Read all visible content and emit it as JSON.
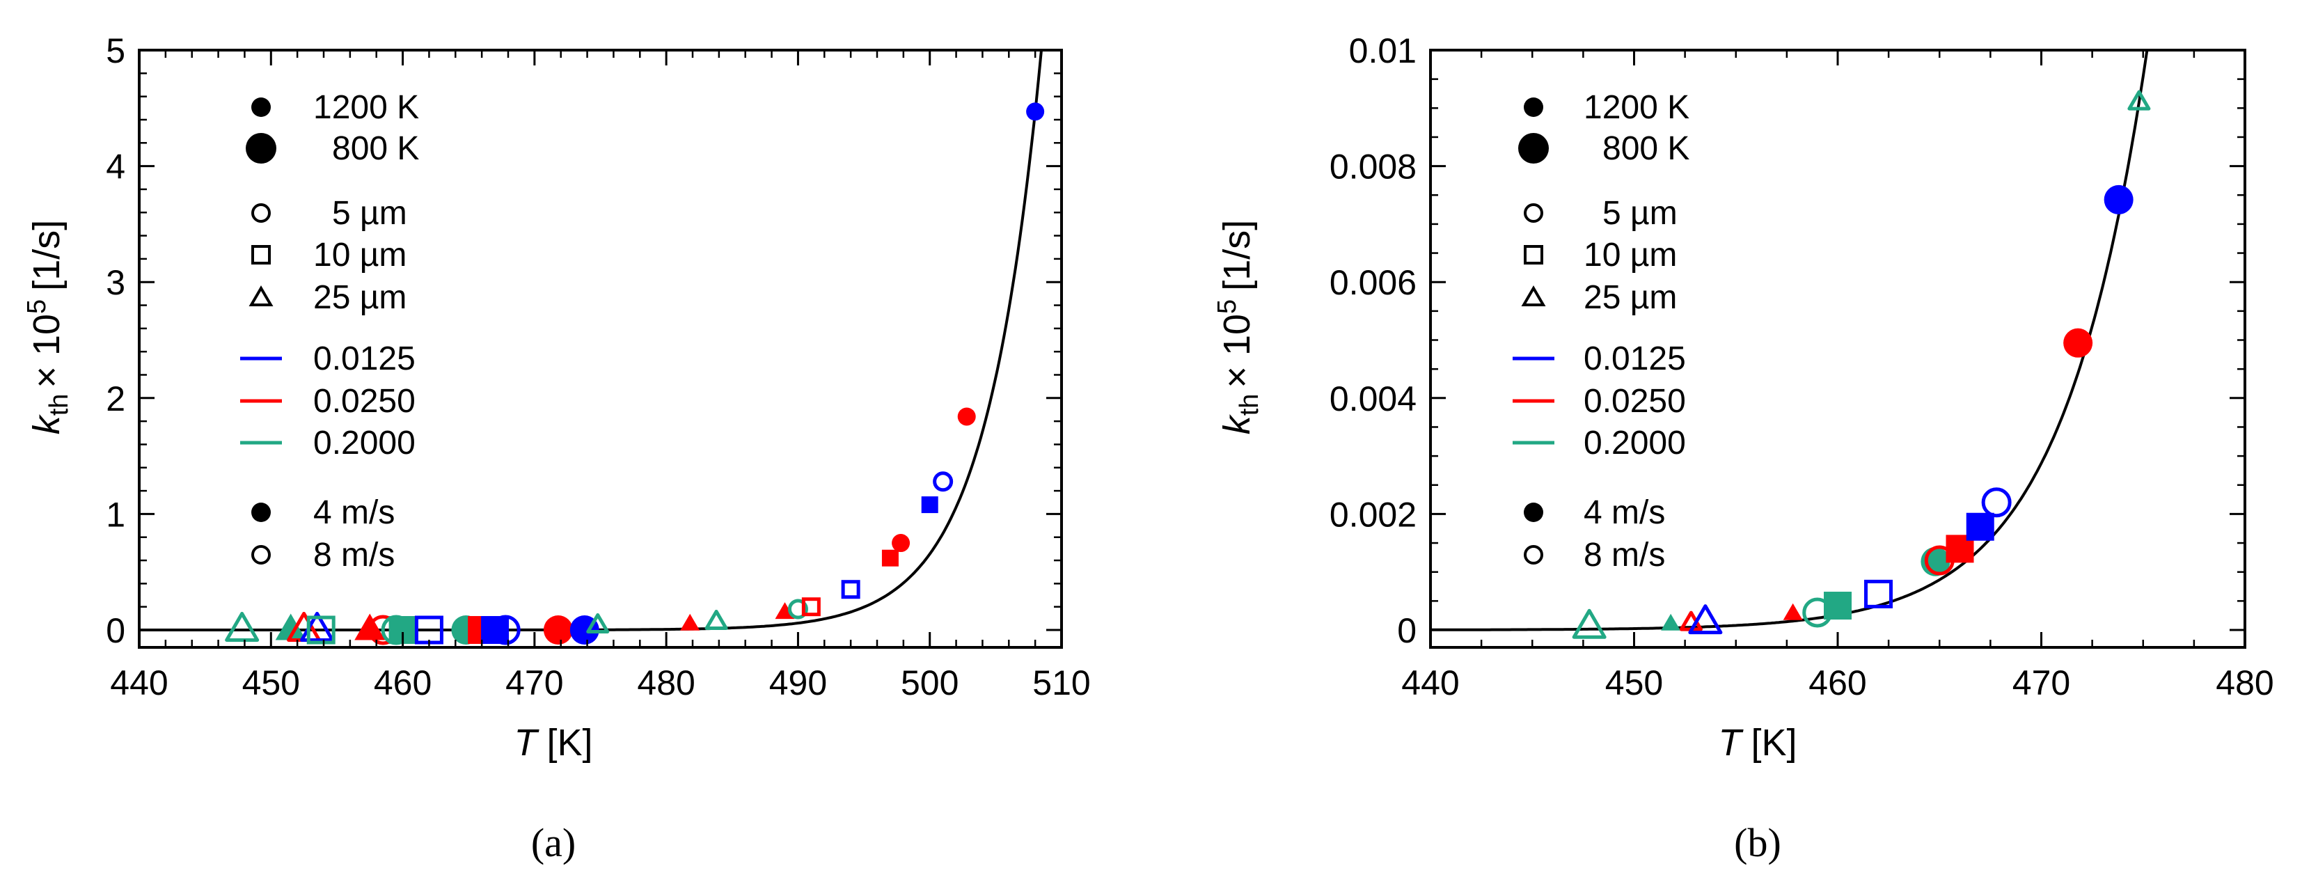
{
  "chart_data": [
    {
      "type": "scatter",
      "panel": "a",
      "caption": "(a)",
      "xlabel": "T",
      "xunit": "[K]",
      "ylabel_main": "k",
      "ylabel_sub": "th",
      "ylabel_mult": "× 10",
      "ylabel_exp": "5",
      "ylabel_unit": "[1/s]",
      "xlim": [
        440,
        510
      ],
      "ylim": [
        -0.15,
        5
      ],
      "xticks": [
        440,
        450,
        460,
        470,
        480,
        490,
        500,
        510
      ],
      "yticks": [
        0,
        1,
        2,
        3,
        4,
        5
      ],
      "xtick_labels": [
        "440",
        "450",
        "460",
        "470",
        "480",
        "490",
        "500",
        "510"
      ],
      "ytick_labels": [
        "0",
        "1",
        "2",
        "3",
        "4",
        "5"
      ],
      "fit_curve": {
        "form": "exponential",
        "a": 4.47,
        "T_ref": 508,
        "b": 0.24,
        "x_start": 440
      },
      "legend": {
        "temperature": [
          {
            "label": "1200 K",
            "size": "small"
          },
          {
            "label": "800 K",
            "size": "large"
          }
        ],
        "diameter": [
          {
            "label": "5 µm",
            "marker": "circle"
          },
          {
            "label": "10 µm",
            "marker": "square"
          },
          {
            "label": "25 µm",
            "marker": "triangle"
          }
        ],
        "ratio": [
          {
            "label": "0.0125",
            "color": "#0000ff"
          },
          {
            "label": "0.0250",
            "color": "#ff0000"
          },
          {
            "label": "0.2000",
            "color": "#22a884"
          }
        ],
        "velocity": [
          {
            "label": "4 m/s",
            "fill": "filled"
          },
          {
            "label": "8 m/s",
            "fill": "open"
          }
        ]
      },
      "points": [
        {
          "x": 447.8,
          "y": 0.0,
          "marker": "triangle",
          "color": "#22a884",
          "fill": "open",
          "size": "large"
        },
        {
          "x": 451.5,
          "y": 0.0,
          "marker": "triangle",
          "color": "#22a884",
          "fill": "filled",
          "size": "large"
        },
        {
          "x": 452.5,
          "y": 0.0,
          "marker": "triangle",
          "color": "#ff0000",
          "fill": "open",
          "size": "large"
        },
        {
          "x": 453.5,
          "y": 0.0,
          "marker": "triangle",
          "color": "#0000ff",
          "fill": "open",
          "size": "large"
        },
        {
          "x": 453.8,
          "y": 0.0,
          "marker": "square",
          "color": "#22a884",
          "fill": "open",
          "size": "large"
        },
        {
          "x": 457.5,
          "y": 0.0,
          "marker": "triangle",
          "color": "#ff0000",
          "fill": "filled",
          "size": "large"
        },
        {
          "x": 458.5,
          "y": 0.0,
          "marker": "circle",
          "color": "#ff0000",
          "fill": "open",
          "size": "large"
        },
        {
          "x": 459.5,
          "y": 0.0,
          "marker": "circle",
          "color": "#22a884",
          "fill": "open",
          "size": "large"
        },
        {
          "x": 460.0,
          "y": 0.0,
          "marker": "square",
          "color": "#22a884",
          "fill": "filled",
          "size": "large"
        },
        {
          "x": 462.0,
          "y": 0.0,
          "marker": "square",
          "color": "#0000ff",
          "fill": "open",
          "size": "large"
        },
        {
          "x": 464.8,
          "y": 0.0,
          "marker": "circle",
          "color": "#22a884",
          "fill": "filled",
          "size": "large"
        },
        {
          "x": 466.0,
          "y": 0.0,
          "marker": "square",
          "color": "#ff0000",
          "fill": "filled",
          "size": "large"
        },
        {
          "x": 467.0,
          "y": 0.0,
          "marker": "square",
          "color": "#0000ff",
          "fill": "filled",
          "size": "large"
        },
        {
          "x": 467.8,
          "y": 0.0,
          "marker": "circle",
          "color": "#0000ff",
          "fill": "open",
          "size": "large"
        },
        {
          "x": 471.8,
          "y": 0.0,
          "marker": "circle",
          "color": "#ff0000",
          "fill": "filled",
          "size": "large"
        },
        {
          "x": 473.8,
          "y": 0.0,
          "marker": "circle",
          "color": "#0000ff",
          "fill": "filled",
          "size": "large"
        },
        {
          "x": 474.8,
          "y": 0.04,
          "marker": "triangle",
          "color": "#22a884",
          "fill": "open",
          "size": "small"
        },
        {
          "x": 481.8,
          "y": 0.05,
          "marker": "triangle",
          "color": "#ff0000",
          "fill": "filled",
          "size": "small"
        },
        {
          "x": 483.8,
          "y": 0.07,
          "marker": "triangle",
          "color": "#22a884",
          "fill": "open",
          "size": "small"
        },
        {
          "x": 489.0,
          "y": 0.15,
          "marker": "triangle",
          "color": "#ff0000",
          "fill": "filled",
          "size": "small"
        },
        {
          "x": 490.0,
          "y": 0.18,
          "marker": "circle",
          "color": "#22a884",
          "fill": "open",
          "size": "small"
        },
        {
          "x": 491.0,
          "y": 0.2,
          "marker": "square",
          "color": "#ff0000",
          "fill": "open",
          "size": "small"
        },
        {
          "x": 494.0,
          "y": 0.35,
          "marker": "square",
          "color": "#0000ff",
          "fill": "open",
          "size": "small"
        },
        {
          "x": 497.0,
          "y": 0.62,
          "marker": "square",
          "color": "#ff0000",
          "fill": "filled",
          "size": "small"
        },
        {
          "x": 497.8,
          "y": 0.75,
          "marker": "circle",
          "color": "#ff0000",
          "fill": "filled",
          "size": "small"
        },
        {
          "x": 500.0,
          "y": 1.08,
          "marker": "square",
          "color": "#0000ff",
          "fill": "filled",
          "size": "small"
        },
        {
          "x": 501.0,
          "y": 1.28,
          "marker": "circle",
          "color": "#0000ff",
          "fill": "open",
          "size": "small"
        },
        {
          "x": 502.8,
          "y": 1.84,
          "marker": "circle",
          "color": "#ff0000",
          "fill": "filled",
          "size": "small"
        },
        {
          "x": 508.0,
          "y": 4.47,
          "marker": "circle",
          "color": "#0000ff",
          "fill": "filled",
          "size": "small"
        }
      ]
    },
    {
      "type": "scatter",
      "panel": "b",
      "caption": "(b)",
      "xlabel": "T",
      "xunit": "[K]",
      "ylabel_main": "k",
      "ylabel_sub": "th",
      "ylabel_mult": "× 10",
      "ylabel_exp": "5",
      "ylabel_unit": "[1/s]",
      "xlim": [
        440,
        480
      ],
      "ylim": [
        -0.0003,
        0.01
      ],
      "xticks": [
        440,
        450,
        460,
        470,
        480
      ],
      "yticks": [
        0,
        0.002,
        0.004,
        0.006,
        0.008,
        0.01
      ],
      "xtick_labels": [
        "440",
        "450",
        "460",
        "470",
        "480"
      ],
      "ytick_labels": [
        "0",
        "0.002",
        "0.004",
        "0.006",
        "0.008",
        "0.01"
      ],
      "fit_curve": {
        "form": "exponential",
        "a": 0.0091,
        "T_ref": 474.8,
        "b": 0.24,
        "x_start": 440
      },
      "legend": {
        "temperature": [
          {
            "label": "1200 K",
            "size": "small"
          },
          {
            "label": "800 K",
            "size": "large"
          }
        ],
        "diameter": [
          {
            "label": "5 µm",
            "marker": "circle"
          },
          {
            "label": "10 µm",
            "marker": "square"
          },
          {
            "label": "25 µm",
            "marker": "triangle"
          }
        ],
        "ratio": [
          {
            "label": "0.0125",
            "color": "#0000ff"
          },
          {
            "label": "0.0250",
            "color": "#ff0000"
          },
          {
            "label": "0.2000",
            "color": "#22a884"
          }
        ],
        "velocity": [
          {
            "label": "4 m/s",
            "fill": "filled"
          },
          {
            "label": "8 m/s",
            "fill": "open"
          }
        ]
      },
      "points": [
        {
          "x": 447.8,
          "y": 5e-05,
          "marker": "triangle",
          "color": "#22a884",
          "fill": "open",
          "size": "large"
        },
        {
          "x": 451.8,
          "y": 0.0001,
          "marker": "triangle",
          "color": "#22a884",
          "fill": "filled",
          "size": "small"
        },
        {
          "x": 452.8,
          "y": 0.00012,
          "marker": "triangle",
          "color": "#ff0000",
          "fill": "open",
          "size": "small"
        },
        {
          "x": 453.5,
          "y": 0.00013,
          "marker": "triangle",
          "color": "#0000ff",
          "fill": "open",
          "size": "large"
        },
        {
          "x": 457.8,
          "y": 0.00028,
          "marker": "triangle",
          "color": "#ff0000",
          "fill": "filled",
          "size": "small"
        },
        {
          "x": 459.0,
          "y": 0.0003,
          "marker": "circle",
          "color": "#22a884",
          "fill": "open",
          "size": "large"
        },
        {
          "x": 460.0,
          "y": 0.00042,
          "marker": "square",
          "color": "#22a884",
          "fill": "filled",
          "size": "large"
        },
        {
          "x": 462.0,
          "y": 0.00062,
          "marker": "square",
          "color": "#0000ff",
          "fill": "open",
          "size": "large"
        },
        {
          "x": 464.8,
          "y": 0.00118,
          "marker": "circle",
          "color": "#22a884",
          "fill": "filled",
          "size": "large"
        },
        {
          "x": 465.0,
          "y": 0.0012,
          "marker": "circle",
          "color": "#ff0000",
          "fill": "open",
          "size": "large"
        },
        {
          "x": 466.0,
          "y": 0.0014,
          "marker": "square",
          "color": "#ff0000",
          "fill": "filled",
          "size": "large"
        },
        {
          "x": 467.0,
          "y": 0.00178,
          "marker": "square",
          "color": "#0000ff",
          "fill": "filled",
          "size": "large"
        },
        {
          "x": 467.8,
          "y": 0.0022,
          "marker": "circle",
          "color": "#0000ff",
          "fill": "open",
          "size": "large"
        },
        {
          "x": 471.8,
          "y": 0.00495,
          "marker": "circle",
          "color": "#ff0000",
          "fill": "filled",
          "size": "large"
        },
        {
          "x": 473.8,
          "y": 0.00742,
          "marker": "circle",
          "color": "#0000ff",
          "fill": "filled",
          "size": "large"
        },
        {
          "x": 474.8,
          "y": 0.0091,
          "marker": "triangle",
          "color": "#22a884",
          "fill": "open",
          "size": "small"
        }
      ]
    }
  ]
}
